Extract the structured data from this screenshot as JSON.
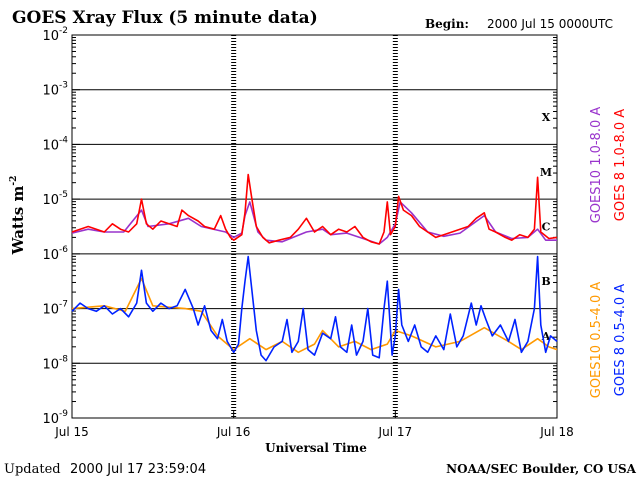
{
  "chart_data": {
    "type": "line",
    "title": "GOES Xray Flux (5 minute data)",
    "begin_label": "Begin:",
    "begin_value": "2000 Jul 15 0000UTC",
    "xlabel": "Universal Time",
    "ylabel_base": "Watts m",
    "ylabel_exp": "-2",
    "yscale": "log",
    "ylim_exponents": [
      -9,
      -2
    ],
    "ytick_base": "10",
    "ytick_exponents": [
      "-9",
      "-8",
      "-7",
      "-6",
      "-5",
      "-4",
      "-3",
      "-2"
    ],
    "xlim_days": [
      0,
      3
    ],
    "xticks": [
      {
        "day": 0,
        "label": "Jul 15"
      },
      {
        "day": 1,
        "label": "Jul 16"
      },
      {
        "day": 2,
        "label": "Jul 17"
      },
      {
        "day": 3,
        "label": "Jul 18"
      }
    ],
    "flare_classes": [
      {
        "label": "A",
        "exp": -7.5
      },
      {
        "label": "B",
        "exp": -6.5
      },
      {
        "label": "C",
        "exp": -5.5
      },
      {
        "label": "M",
        "exp": -4.5
      },
      {
        "label": "X",
        "exp": -3.5
      }
    ],
    "series": [
      {
        "name": "GOES10 1.0-8.0 A",
        "band": "long",
        "color": "#9933cc",
        "points": [
          [
            0,
            -5.62
          ],
          [
            0.1,
            -5.55
          ],
          [
            0.2,
            -5.6
          ],
          [
            0.32,
            -5.6
          ],
          [
            0.43,
            -5.2
          ],
          [
            0.47,
            -5.5
          ],
          [
            0.6,
            -5.45
          ],
          [
            0.72,
            -5.35
          ],
          [
            0.8,
            -5.5
          ],
          [
            0.95,
            -5.6
          ],
          [
            1.0,
            -5.7
          ],
          [
            1.05,
            -5.62
          ],
          [
            1.07,
            -5.3
          ],
          [
            1.1,
            -5.05
          ],
          [
            1.15,
            -5.6
          ],
          [
            1.2,
            -5.75
          ],
          [
            1.3,
            -5.78
          ],
          [
            1.45,
            -5.6
          ],
          [
            1.55,
            -5.55
          ],
          [
            1.6,
            -5.65
          ],
          [
            1.7,
            -5.62
          ],
          [
            1.8,
            -5.72
          ],
          [
            1.9,
            -5.82
          ],
          [
            1.95,
            -5.7
          ],
          [
            2.0,
            -5.45
          ],
          [
            2.03,
            -5.05
          ],
          [
            2.1,
            -5.25
          ],
          [
            2.2,
            -5.6
          ],
          [
            2.3,
            -5.68
          ],
          [
            2.4,
            -5.62
          ],
          [
            2.55,
            -5.3
          ],
          [
            2.62,
            -5.6
          ],
          [
            2.72,
            -5.72
          ],
          [
            2.82,
            -5.7
          ],
          [
            2.88,
            -5.55
          ],
          [
            2.93,
            -5.75
          ],
          [
            3.0,
            -5.75
          ]
        ]
      },
      {
        "name": "GOES 8 1.0-8.0 A",
        "band": "long",
        "color": "#ff0000",
        "points": [
          [
            0,
            -5.6
          ],
          [
            0.05,
            -5.55
          ],
          [
            0.1,
            -5.5
          ],
          [
            0.15,
            -5.55
          ],
          [
            0.2,
            -5.6
          ],
          [
            0.25,
            -5.45
          ],
          [
            0.3,
            -5.55
          ],
          [
            0.35,
            -5.6
          ],
          [
            0.4,
            -5.45
          ],
          [
            0.43,
            -5.0
          ],
          [
            0.46,
            -5.45
          ],
          [
            0.5,
            -5.55
          ],
          [
            0.55,
            -5.4
          ],
          [
            0.6,
            -5.45
          ],
          [
            0.65,
            -5.5
          ],
          [
            0.68,
            -5.2
          ],
          [
            0.72,
            -5.3
          ],
          [
            0.78,
            -5.4
          ],
          [
            0.82,
            -5.5
          ],
          [
            0.88,
            -5.55
          ],
          [
            0.92,
            -5.3
          ],
          [
            0.95,
            -5.55
          ],
          [
            0.98,
            -5.7
          ],
          [
            1.0,
            -5.75
          ],
          [
            1.05,
            -5.65
          ],
          [
            1.07,
            -5.25
          ],
          [
            1.09,
            -4.55
          ],
          [
            1.11,
            -4.95
          ],
          [
            1.14,
            -5.5
          ],
          [
            1.18,
            -5.7
          ],
          [
            1.22,
            -5.8
          ],
          [
            1.28,
            -5.75
          ],
          [
            1.35,
            -5.7
          ],
          [
            1.4,
            -5.55
          ],
          [
            1.45,
            -5.35
          ],
          [
            1.5,
            -5.6
          ],
          [
            1.55,
            -5.5
          ],
          [
            1.6,
            -5.65
          ],
          [
            1.65,
            -5.55
          ],
          [
            1.7,
            -5.6
          ],
          [
            1.75,
            -5.5
          ],
          [
            1.8,
            -5.7
          ],
          [
            1.85,
            -5.78
          ],
          [
            1.9,
            -5.82
          ],
          [
            1.93,
            -5.6
          ],
          [
            1.95,
            -5.05
          ],
          [
            1.97,
            -5.65
          ],
          [
            2.0,
            -5.5
          ],
          [
            2.02,
            -4.95
          ],
          [
            2.05,
            -5.2
          ],
          [
            2.1,
            -5.3
          ],
          [
            2.15,
            -5.5
          ],
          [
            2.2,
            -5.6
          ],
          [
            2.25,
            -5.7
          ],
          [
            2.3,
            -5.65
          ],
          [
            2.35,
            -5.6
          ],
          [
            2.4,
            -5.55
          ],
          [
            2.45,
            -5.5
          ],
          [
            2.5,
            -5.35
          ],
          [
            2.55,
            -5.25
          ],
          [
            2.58,
            -5.55
          ],
          [
            2.62,
            -5.6
          ],
          [
            2.68,
            -5.7
          ],
          [
            2.72,
            -5.75
          ],
          [
            2.77,
            -5.65
          ],
          [
            2.82,
            -5.7
          ],
          [
            2.86,
            -5.55
          ],
          [
            2.88,
            -4.6
          ],
          [
            2.9,
            -5.6
          ],
          [
            2.95,
            -5.72
          ],
          [
            3.0,
            -5.7
          ]
        ]
      },
      {
        "name": "GOES10 0.5-4.0 A",
        "band": "short",
        "color": "#ff9900",
        "points": [
          [
            0,
            -7.0
          ],
          [
            0.2,
            -6.95
          ],
          [
            0.33,
            -7.05
          ],
          [
            0.43,
            -6.45
          ],
          [
            0.5,
            -6.95
          ],
          [
            0.7,
            -7.0
          ],
          [
            0.8,
            -7.05
          ],
          [
            0.9,
            -7.5
          ],
          [
            1.0,
            -7.75
          ],
          [
            1.1,
            -7.55
          ],
          [
            1.2,
            -7.75
          ],
          [
            1.3,
            -7.6
          ],
          [
            1.4,
            -7.8
          ],
          [
            1.5,
            -7.65
          ],
          [
            1.55,
            -7.4
          ],
          [
            1.65,
            -7.7
          ],
          [
            1.75,
            -7.6
          ],
          [
            1.85,
            -7.75
          ],
          [
            1.95,
            -7.65
          ],
          [
            2.0,
            -7.4
          ],
          [
            2.1,
            -7.5
          ],
          [
            2.25,
            -7.7
          ],
          [
            2.4,
            -7.6
          ],
          [
            2.55,
            -7.35
          ],
          [
            2.7,
            -7.6
          ],
          [
            2.78,
            -7.75
          ],
          [
            2.88,
            -7.55
          ],
          [
            2.95,
            -7.7
          ],
          [
            3.0,
            -7.75
          ]
        ]
      },
      {
        "name": "GOES 8 0.5-4.0 A",
        "band": "short",
        "color": "#0022ff",
        "points": [
          [
            0,
            -7.05
          ],
          [
            0.05,
            -6.9
          ],
          [
            0.1,
            -7.0
          ],
          [
            0.15,
            -7.05
          ],
          [
            0.2,
            -6.95
          ],
          [
            0.25,
            -7.1
          ],
          [
            0.3,
            -7.0
          ],
          [
            0.35,
            -7.15
          ],
          [
            0.4,
            -6.9
          ],
          [
            0.43,
            -6.3
          ],
          [
            0.46,
            -6.9
          ],
          [
            0.5,
            -7.05
          ],
          [
            0.55,
            -6.9
          ],
          [
            0.6,
            -7.0
          ],
          [
            0.65,
            -6.95
          ],
          [
            0.7,
            -6.65
          ],
          [
            0.75,
            -7.0
          ],
          [
            0.78,
            -7.3
          ],
          [
            0.82,
            -6.95
          ],
          [
            0.86,
            -7.4
          ],
          [
            0.9,
            -7.55
          ],
          [
            0.93,
            -7.2
          ],
          [
            0.96,
            -7.6
          ],
          [
            1.0,
            -7.8
          ],
          [
            1.03,
            -7.65
          ],
          [
            1.05,
            -7.0
          ],
          [
            1.07,
            -6.5
          ],
          [
            1.09,
            -6.05
          ],
          [
            1.11,
            -6.6
          ],
          [
            1.14,
            -7.4
          ],
          [
            1.17,
            -7.85
          ],
          [
            1.2,
            -7.95
          ],
          [
            1.25,
            -7.7
          ],
          [
            1.3,
            -7.6
          ],
          [
            1.33,
            -7.2
          ],
          [
            1.36,
            -7.8
          ],
          [
            1.4,
            -7.6
          ],
          [
            1.43,
            -7.0
          ],
          [
            1.46,
            -7.75
          ],
          [
            1.5,
            -7.85
          ],
          [
            1.55,
            -7.45
          ],
          [
            1.6,
            -7.55
          ],
          [
            1.63,
            -7.15
          ],
          [
            1.66,
            -7.7
          ],
          [
            1.7,
            -7.8
          ],
          [
            1.73,
            -7.3
          ],
          [
            1.76,
            -7.85
          ],
          [
            1.8,
            -7.6
          ],
          [
            1.83,
            -7.0
          ],
          [
            1.86,
            -7.85
          ],
          [
            1.9,
            -7.9
          ],
          [
            1.93,
            -7.0
          ],
          [
            1.95,
            -6.5
          ],
          [
            1.98,
            -7.85
          ],
          [
            2.0,
            -7.5
          ],
          [
            2.02,
            -6.65
          ],
          [
            2.04,
            -7.3
          ],
          [
            2.08,
            -7.6
          ],
          [
            2.12,
            -7.3
          ],
          [
            2.16,
            -7.7
          ],
          [
            2.2,
            -7.8
          ],
          [
            2.25,
            -7.5
          ],
          [
            2.3,
            -7.75
          ],
          [
            2.34,
            -7.1
          ],
          [
            2.38,
            -7.7
          ],
          [
            2.42,
            -7.5
          ],
          [
            2.47,
            -6.9
          ],
          [
            2.5,
            -7.3
          ],
          [
            2.53,
            -6.95
          ],
          [
            2.56,
            -7.2
          ],
          [
            2.6,
            -7.5
          ],
          [
            2.65,
            -7.3
          ],
          [
            2.7,
            -7.6
          ],
          [
            2.74,
            -7.2
          ],
          [
            2.78,
            -7.8
          ],
          [
            2.82,
            -7.6
          ],
          [
            2.86,
            -7.0
          ],
          [
            2.88,
            -6.05
          ],
          [
            2.9,
            -7.3
          ],
          [
            2.93,
            -7.8
          ],
          [
            2.96,
            -7.5
          ],
          [
            3.0,
            -7.6
          ]
        ]
      }
    ]
  },
  "footer": {
    "updated_label": "Updated",
    "updated_value": "2000 Jul 17 23:59:04",
    "source": "NOAA/SEC Boulder, CO USA"
  }
}
